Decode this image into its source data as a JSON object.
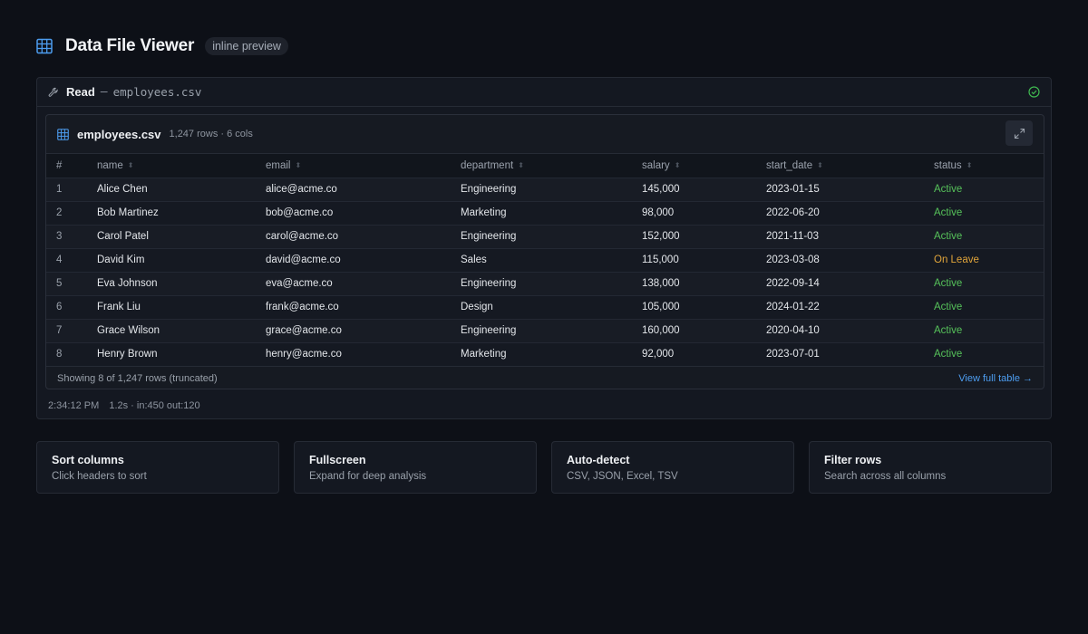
{
  "header": {
    "title": "Data File Viewer",
    "badge": "inline preview"
  },
  "tool": {
    "action": "Read",
    "separator": "—",
    "file": "employees.csv"
  },
  "file_panel": {
    "name": "employees.csv",
    "meta": "1,247 rows · 6 cols",
    "columns": [
      "#",
      "name",
      "email",
      "department",
      "salary",
      "start_date",
      "status"
    ],
    "rows": [
      [
        "1",
        "Alice Chen",
        "alice@acme.co",
        "Engineering",
        "145,000",
        "2023-01-15",
        "Active"
      ],
      [
        "2",
        "Bob Martinez",
        "bob@acme.co",
        "Marketing",
        "98,000",
        "2022-06-20",
        "Active"
      ],
      [
        "3",
        "Carol Patel",
        "carol@acme.co",
        "Engineering",
        "152,000",
        "2021-11-03",
        "Active"
      ],
      [
        "4",
        "David Kim",
        "david@acme.co",
        "Sales",
        "115,000",
        "2023-03-08",
        "On Leave"
      ],
      [
        "5",
        "Eva Johnson",
        "eva@acme.co",
        "Engineering",
        "138,000",
        "2022-09-14",
        "Active"
      ],
      [
        "6",
        "Frank Liu",
        "frank@acme.co",
        "Design",
        "105,000",
        "2024-01-22",
        "Active"
      ],
      [
        "7",
        "Grace Wilson",
        "grace@acme.co",
        "Engineering",
        "160,000",
        "2020-04-10",
        "Active"
      ],
      [
        "8",
        "Henry Brown",
        "henry@acme.co",
        "Marketing",
        "92,000",
        "2023-07-01",
        "Active"
      ]
    ],
    "footer_text": "Showing 8 of 1,247 rows (truncated)",
    "view_full_label": "View full table →"
  },
  "tool_footer": {
    "time": "2:34:12 PM",
    "stats": "1.2s · in:450 out:120"
  },
  "features": [
    {
      "title": "Sort columns",
      "desc": "Click headers to sort"
    },
    {
      "title": "Fullscreen",
      "desc": "Expand for deep analysis"
    },
    {
      "title": "Auto-detect",
      "desc": "CSV, JSON, Excel, TSV"
    },
    {
      "title": "Filter rows",
      "desc": "Search across all columns"
    }
  ],
  "colors": {
    "accent": "#4d9df0",
    "active": "#56c25a",
    "on_leave": "#e0a43a",
    "success": "#3fb950"
  },
  "icons": {
    "header": "table-grid-icon",
    "tool": "wrench-icon",
    "done": "check-circle-icon",
    "expand": "expand-icon",
    "sort": "sort-icon"
  }
}
